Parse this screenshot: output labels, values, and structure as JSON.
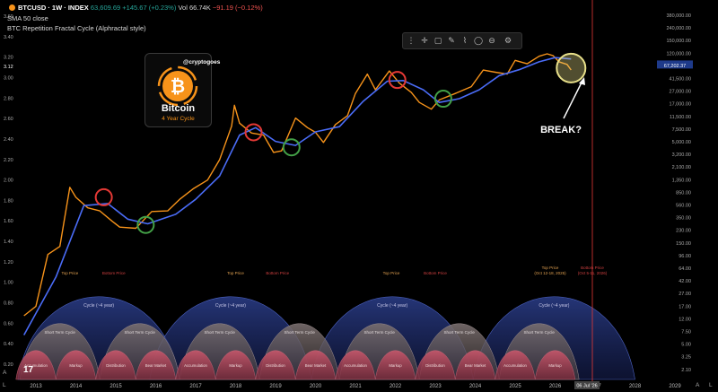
{
  "header": {
    "symbol": "BTCUSD · 1W · INDEX",
    "ohlc": "63,609.69 +145.67 (+0.23%)",
    "vol": "Vol 66.74K",
    "change": "−91.19 (−0.12%)",
    "sma_label": "SMA 50 close",
    "indicator_label": "BTC Repetition Fractal Cycle (Alphractal style)",
    "watermark": "@cryptogoes"
  },
  "logo": {
    "title": "Bitcoin",
    "subtitle": "4 Year Cycle",
    "symbol": "₿"
  },
  "toolbar": {
    "icons": [
      "drag-icon",
      "crosshair-icon",
      "rectangle-icon",
      "pencil-icon",
      "brush-icon",
      "circle-icon",
      "measure-icon",
      "settings-icon"
    ]
  },
  "annotation": {
    "text": "BREAK?"
  },
  "bottom_left": {
    "a": "A",
    "l": "L"
  },
  "bottom_right": {
    "a": "A",
    "l": "L"
  },
  "chart_data": {
    "type": "line",
    "x_ticks": [
      "2013",
      "2014",
      "2015",
      "2016",
      "2017",
      "2018",
      "2019",
      "2020",
      "2021",
      "2022",
      "2023",
      "2024",
      "2025",
      "2026",
      "2027",
      "2028",
      "2029"
    ],
    "current_date_label": "06 Jul '26",
    "left_axis_ticks": [
      "3.60",
      "3.40",
      "3.20",
      "3.12",
      "3.00",
      "2.80",
      "2.60",
      "2.40",
      "2.20",
      "2.00",
      "1.80",
      "1.60",
      "1.40",
      "1.20",
      "1.00",
      "0.80",
      "0.60",
      "0.40",
      "0.20"
    ],
    "right_axis_ticks": [
      "380,000.00",
      "240,000.00",
      "150,000.00",
      "120,000.00",
      "67,202.37",
      "41,500.00",
      "27,000.00",
      "17,000.00",
      "11,500.00",
      "7,500.00",
      "5,000.00",
      "3,200.00",
      "2,100.00",
      "1,350.00",
      "850.00",
      "560.00",
      "350.00",
      "230.00",
      "150.00",
      "96.00",
      "64.00",
      "42.00",
      "27.00",
      "17.00",
      "12.00",
      "7.50",
      "5.00",
      "3.25",
      "2.10"
    ],
    "current_price": "67,202.37",
    "series": [
      {
        "name": "BTCUSD",
        "color": "#f7931a",
        "x": [
          2012.7,
          2013.0,
          2013.3,
          2013.6,
          2013.85,
          2014.0,
          2014.3,
          2014.6,
          2014.9,
          2015.1,
          2015.5,
          2015.9,
          2016.3,
          2016.6,
          2016.95,
          2017.3,
          2017.6,
          2017.9,
          2017.97,
          2018.1,
          2018.4,
          2018.7,
          2018.95,
          2019.15,
          2019.5,
          2019.8,
          2020.0,
          2020.2,
          2020.5,
          2020.8,
          2021.0,
          2021.3,
          2021.5,
          2021.85,
          2022.1,
          2022.4,
          2022.6,
          2022.9,
          2023.1,
          2023.5,
          2023.9,
          2024.2,
          2024.5,
          2024.8,
          2025.0,
          2025.3,
          2025.6,
          2025.8,
          2025.95,
          2026.1,
          2026.3,
          2026.4
        ],
        "y": [
          10,
          14,
          90,
          120,
          1000,
          700,
          480,
          430,
          300,
          240,
          230,
          420,
          430,
          650,
          960,
          1300,
          2700,
          9000,
          19000,
          10000,
          7000,
          6500,
          3500,
          3700,
          12000,
          8500,
          7200,
          5000,
          9500,
          13000,
          29000,
          58000,
          33000,
          65000,
          42000,
          30000,
          21000,
          16500,
          23000,
          29000,
          37000,
          67000,
          62000,
          58000,
          95000,
          84000,
          110000,
          120000,
          112000,
          90000,
          82000,
          67202
        ]
      },
      {
        "name": "SMA 50",
        "color": "#4a6cf7",
        "x": [
          2012.7,
          2013.5,
          2014.2,
          2014.8,
          2015.3,
          2015.8,
          2016.5,
          2017.0,
          2017.6,
          2018.1,
          2018.5,
          2019.0,
          2019.5,
          2020.0,
          2020.6,
          2021.2,
          2021.8,
          2022.2,
          2022.7,
          2023.1,
          2023.6,
          2024.1,
          2024.6,
          2025.1,
          2025.6,
          2026.0,
          2026.4
        ],
        "y": [
          5,
          40,
          520,
          560,
          320,
          270,
          380,
          650,
          1500,
          6500,
          8500,
          5200,
          4500,
          7300,
          8800,
          22000,
          45000,
          46000,
          33000,
          21000,
          24000,
          33000,
          55000,
          68000,
          90000,
          105000,
          100000
        ]
      }
    ],
    "markers": [
      {
        "type": "top",
        "color": "#e53935",
        "x": 2014.7,
        "y": 700
      },
      {
        "type": "bottom",
        "color": "#43a047",
        "x": 2015.75,
        "y": 260
      },
      {
        "type": "top",
        "color": "#e53935",
        "x": 2018.45,
        "y": 7200
      },
      {
        "type": "bottom",
        "color": "#43a047",
        "x": 2019.4,
        "y": 4200
      },
      {
        "type": "top",
        "color": "#e53935",
        "x": 2022.05,
        "y": 47000
      },
      {
        "type": "bottom",
        "color": "#43a047",
        "x": 2023.2,
        "y": 24000
      },
      {
        "type": "highlight",
        "color": "#e8e08a",
        "x": 2026.4,
        "y": 72000
      }
    ],
    "cycle_labels": {
      "top": "Top Price",
      "bottom": "Bottom Price",
      "last_top": "Top Price",
      "last_top_date": "(Oct 12-18, 2025)",
      "last_bottom": "Bottom Price",
      "last_bottom_date": "(Oct 5-11, 2026)",
      "cycle": "Cycle (~4 year)",
      "short_cycle": "Short Term Cycle",
      "phases": [
        "Accumulation",
        "Markup",
        "Distribution",
        "Bear Market"
      ]
    }
  }
}
